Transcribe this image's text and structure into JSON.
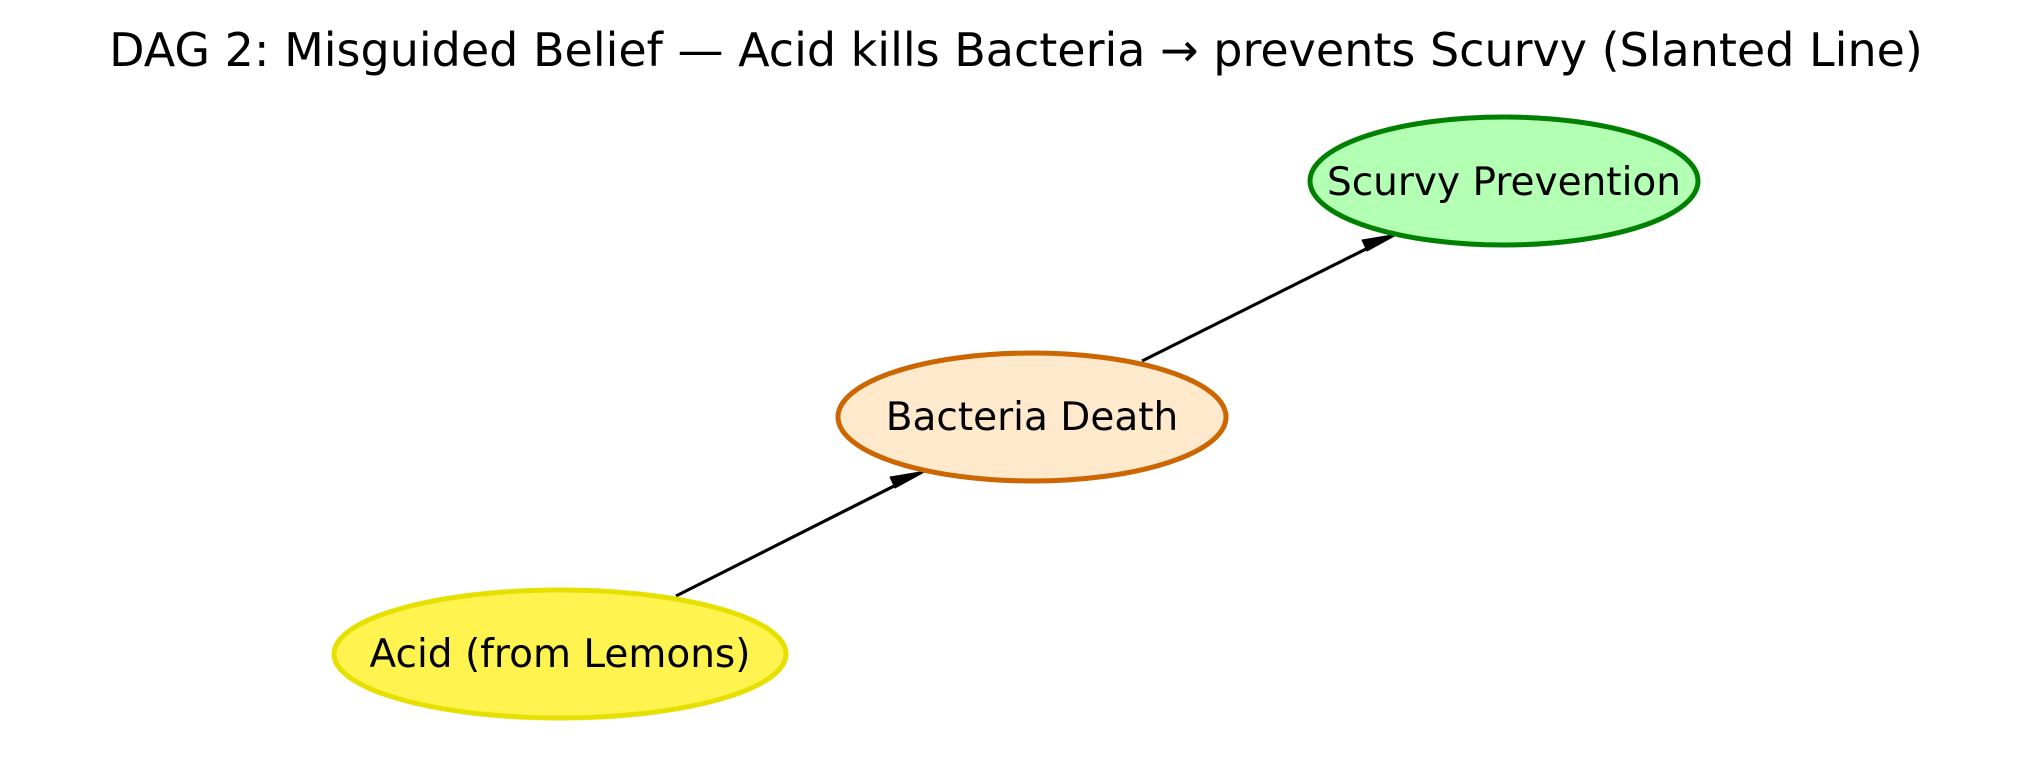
{
  "title": "DAG 2: Misguided Belief — Acid kills Bacteria → prevents Scurvy (Slanted Line)",
  "nodes": {
    "acid": {
      "label": "Acid (from Lemons)",
      "fill": "#fff44f",
      "stroke": "#e5e000"
    },
    "bacteria": {
      "label": "Bacteria Death",
      "fill": "#ffe9cc",
      "stroke": "#cc6600"
    },
    "scurvy": {
      "label": "Scurvy Prevention",
      "fill": "#b3ffb3",
      "stroke": "#008000"
    }
  },
  "edges": [
    {
      "from": "acid",
      "to": "bacteria"
    },
    {
      "from": "bacteria",
      "to": "scurvy"
    }
  ]
}
